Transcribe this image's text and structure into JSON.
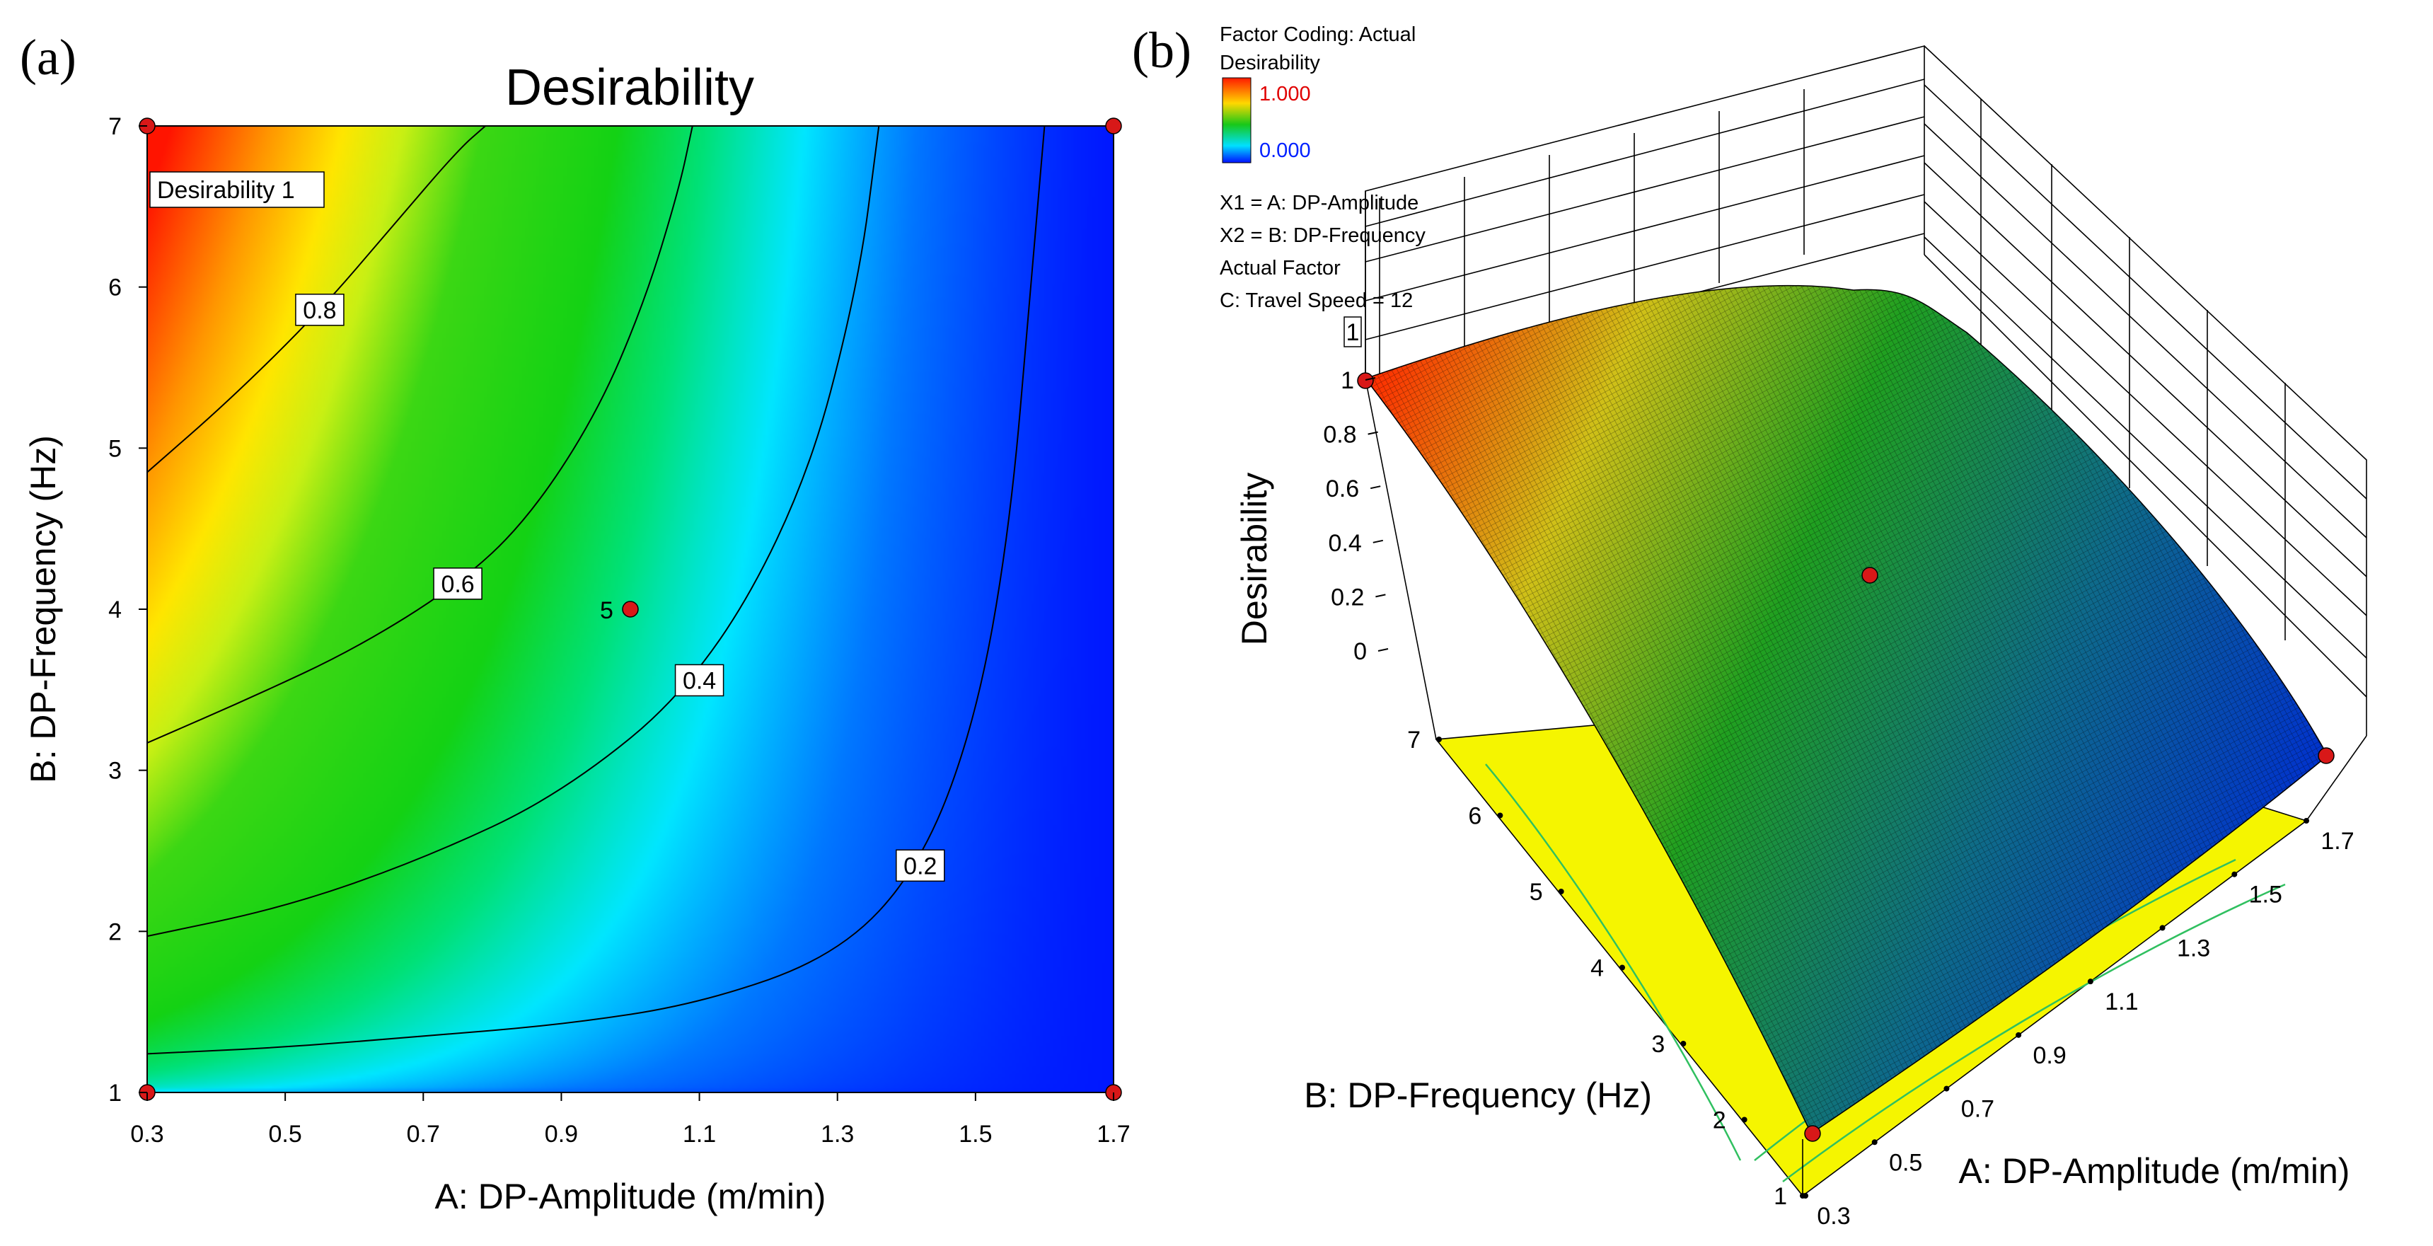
{
  "panel_a_label": "(a)",
  "panel_b_label": "(b)",
  "chart_data": [
    {
      "type": "contour",
      "title": "Desirability",
      "xlabel": "A: DP-Amplitude (m/min)",
      "ylabel": "B: DP-Frequency (Hz)",
      "xlim": [
        0.3,
        1.7
      ],
      "ylim": [
        1,
        7
      ],
      "xticks": [
        "0.3",
        "0.5",
        "0.7",
        "0.9",
        "1.1",
        "1.3",
        "1.5",
        "1.7"
      ],
      "yticks": [
        "1",
        "2",
        "3",
        "4",
        "5",
        "6",
        "7"
      ],
      "contour_levels": [
        {
          "label": "0.8",
          "points": [
            [
              0.3,
              4.85
            ],
            [
              0.42,
              5.3
            ],
            [
              0.55,
              5.85
            ],
            [
              0.65,
              6.35
            ],
            [
              0.75,
              6.85
            ],
            [
              0.79,
              7.0
            ]
          ]
        },
        {
          "label": "0.6",
          "points": [
            [
              0.3,
              3.17
            ],
            [
              0.45,
              3.45
            ],
            [
              0.6,
              3.75
            ],
            [
              0.75,
              4.15
            ],
            [
              0.85,
              4.55
            ],
            [
              0.95,
              5.2
            ],
            [
              1.02,
              5.9
            ],
            [
              1.07,
              6.6
            ],
            [
              1.09,
              7.0
            ]
          ]
        },
        {
          "label": "0.4",
          "points": [
            [
              0.3,
              1.97
            ],
            [
              0.5,
              2.15
            ],
            [
              0.7,
              2.45
            ],
            [
              0.9,
              2.85
            ],
            [
              1.1,
              3.55
            ],
            [
              1.25,
              4.7
            ],
            [
              1.33,
              6.0
            ],
            [
              1.36,
              7.0
            ]
          ]
        },
        {
          "label": "0.2",
          "points": [
            [
              0.3,
              1.24
            ],
            [
              0.5,
              1.28
            ],
            [
              0.7,
              1.35
            ],
            [
              0.9,
              1.42
            ],
            [
              1.1,
              1.55
            ],
            [
              1.3,
              1.85
            ],
            [
              1.42,
              2.4
            ],
            [
              1.5,
              3.3
            ],
            [
              1.55,
              4.5
            ],
            [
              1.58,
              6.0
            ],
            [
              1.6,
              7.0
            ]
          ]
        }
      ],
      "design_points": [
        [
          0.3,
          7
        ],
        [
          1.7,
          7
        ],
        [
          1.0,
          4
        ],
        [
          0.3,
          1
        ],
        [
          1.7,
          1
        ]
      ],
      "center_point_count": "5",
      "flag_text": "Desirability  1"
    },
    {
      "type": "surface3d",
      "xlabel": "A: DP-Amplitude (m/min)",
      "ylabel": "B: DP-Frequency (Hz)",
      "zlabel": "Desirability",
      "xticks": [
        "0.3",
        "0.5",
        "0.7",
        "0.9",
        "1.1",
        "1.3",
        "1.5",
        "1.7"
      ],
      "yticks": [
        "1",
        "2",
        "3",
        "4",
        "5",
        "6",
        "7"
      ],
      "zticks": [
        "0",
        "0.2",
        "0.4",
        "0.6",
        "0.8",
        "1"
      ],
      "flag_text": "1",
      "legend": {
        "factor_coding": "Factor Coding: Actual",
        "response": "Desirability",
        "max_label": "1.000",
        "min_label": "0.000",
        "x1": "X1 = A: DP-Amplitude",
        "x2": "X2 = B: DP-Frequency",
        "actual_factor": "Actual Factor",
        "factor_c": "C: Travel Speed = 12"
      },
      "design_points": [
        [
          0.3,
          7,
          1.0
        ],
        [
          1.7,
          7,
          0.0
        ],
        [
          0.3,
          1,
          0.0
        ],
        [
          1.0,
          4,
          0.52
        ]
      ]
    }
  ]
}
